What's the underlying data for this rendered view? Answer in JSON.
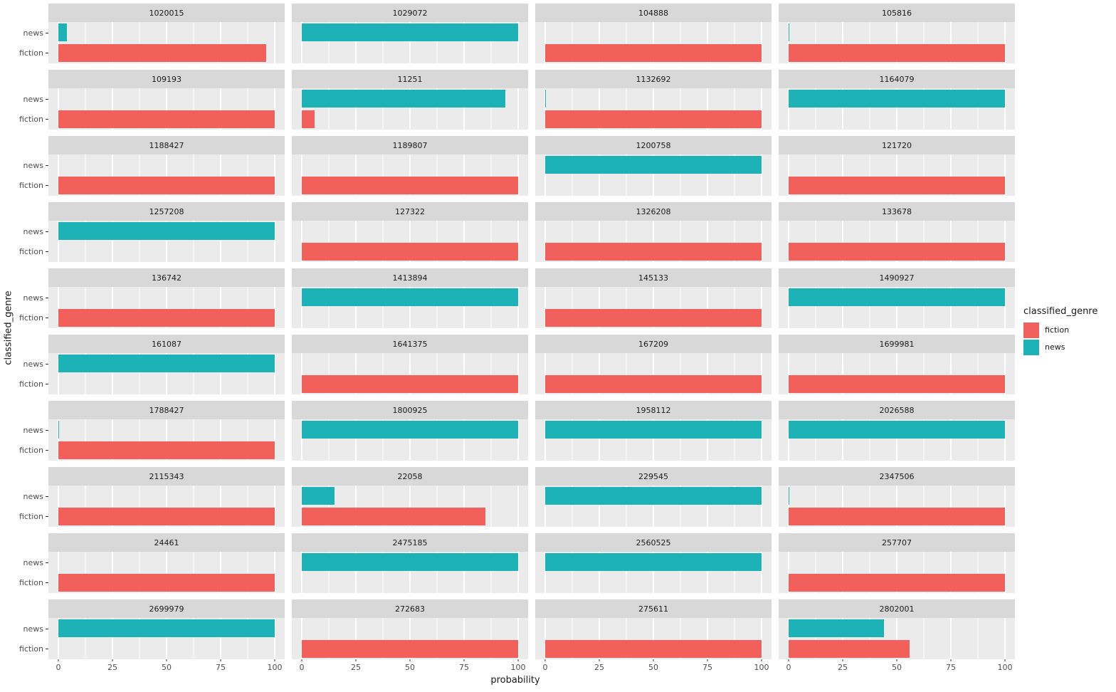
{
  "figure": {
    "x_axis": {
      "title": "probability",
      "tick_values": [
        0,
        25,
        50,
        75,
        100
      ]
    },
    "y_axis": {
      "title": "classified_genre",
      "categories": [
        "news",
        "fiction"
      ]
    },
    "legend": {
      "title": "classified_genre",
      "items": [
        {
          "label": "fiction",
          "color": "#F2605C"
        },
        {
          "label": "news",
          "color": "#1CB2B6"
        }
      ]
    },
    "colors": {
      "fiction": "#F2605C",
      "news": "#1CB2B6",
      "panel_background": "#EBEBEB",
      "strip_background": "#D8D8D8",
      "gridline": "#FFFFFF"
    }
  },
  "chart_data": {
    "type": "bar",
    "orientation": "horizontal",
    "title": "",
    "xlabel": "probability",
    "ylabel": "classified_genre",
    "xlim": [
      0,
      100
    ],
    "x_ticks": [
      0,
      25,
      50,
      75,
      100
    ],
    "categories": [
      "news",
      "fiction"
    ],
    "legend_position": "right",
    "grid": "major and minor vertical white gridlines on gray panel",
    "facet_columns": 4,
    "facets": [
      {
        "id": "1020015",
        "values": {
          "news": 4,
          "fiction": 96
        }
      },
      {
        "id": "1029072",
        "values": {
          "news": 100,
          "fiction": 0
        }
      },
      {
        "id": "104888",
        "values": {
          "news": 0,
          "fiction": 100
        }
      },
      {
        "id": "105816",
        "values": {
          "news": 0.5,
          "fiction": 100
        }
      },
      {
        "id": "109193",
        "values": {
          "news": 0,
          "fiction": 100
        }
      },
      {
        "id": "11251",
        "values": {
          "news": 94,
          "fiction": 6
        }
      },
      {
        "id": "1132692",
        "values": {
          "news": 0.5,
          "fiction": 100
        }
      },
      {
        "id": "1164079",
        "values": {
          "news": 100,
          "fiction": 0
        }
      },
      {
        "id": "1188427",
        "values": {
          "news": 0,
          "fiction": 100
        }
      },
      {
        "id": "1189807",
        "values": {
          "news": 0,
          "fiction": 100
        }
      },
      {
        "id": "1200758",
        "values": {
          "news": 100,
          "fiction": 0
        }
      },
      {
        "id": "121720",
        "values": {
          "news": 0,
          "fiction": 100
        }
      },
      {
        "id": "1257208",
        "values": {
          "news": 100,
          "fiction": 0
        }
      },
      {
        "id": "127322",
        "values": {
          "news": 0,
          "fiction": 100
        }
      },
      {
        "id": "1326208",
        "values": {
          "news": 0,
          "fiction": 100
        }
      },
      {
        "id": "133678",
        "values": {
          "news": 0,
          "fiction": 100
        }
      },
      {
        "id": "136742",
        "values": {
          "news": 0,
          "fiction": 100
        }
      },
      {
        "id": "1413894",
        "values": {
          "news": 100,
          "fiction": 0
        }
      },
      {
        "id": "145133",
        "values": {
          "news": 0,
          "fiction": 100
        }
      },
      {
        "id": "1490927",
        "values": {
          "news": 100,
          "fiction": 0
        }
      },
      {
        "id": "161087",
        "values": {
          "news": 100,
          "fiction": 0
        }
      },
      {
        "id": "1641375",
        "values": {
          "news": 0,
          "fiction": 100
        }
      },
      {
        "id": "167209",
        "values": {
          "news": 0,
          "fiction": 100
        }
      },
      {
        "id": "1699981",
        "values": {
          "news": 0,
          "fiction": 100
        }
      },
      {
        "id": "1788427",
        "values": {
          "news": 0.5,
          "fiction": 100
        }
      },
      {
        "id": "1800925",
        "values": {
          "news": 100,
          "fiction": 0
        }
      },
      {
        "id": "1958112",
        "values": {
          "news": 100,
          "fiction": 0
        }
      },
      {
        "id": "2026588",
        "values": {
          "news": 100,
          "fiction": 0
        }
      },
      {
        "id": "2115343",
        "values": {
          "news": 0,
          "fiction": 100
        }
      },
      {
        "id": "22058",
        "values": {
          "news": 15,
          "fiction": 85
        }
      },
      {
        "id": "229545",
        "values": {
          "news": 100,
          "fiction": 0
        }
      },
      {
        "id": "2347506",
        "values": {
          "news": 0.5,
          "fiction": 100
        }
      },
      {
        "id": "24461",
        "values": {
          "news": 0,
          "fiction": 100
        }
      },
      {
        "id": "2475185",
        "values": {
          "news": 100,
          "fiction": 0
        }
      },
      {
        "id": "2560525",
        "values": {
          "news": 100,
          "fiction": 0
        }
      },
      {
        "id": "257707",
        "values": {
          "news": 0,
          "fiction": 100
        }
      },
      {
        "id": "2699979",
        "values": {
          "news": 100,
          "fiction": 0
        }
      },
      {
        "id": "272683",
        "values": {
          "news": 0,
          "fiction": 100
        }
      },
      {
        "id": "275611",
        "values": {
          "news": 0,
          "fiction": 100
        }
      },
      {
        "id": "2802001",
        "values": {
          "news": 44,
          "fiction": 56
        }
      }
    ]
  }
}
